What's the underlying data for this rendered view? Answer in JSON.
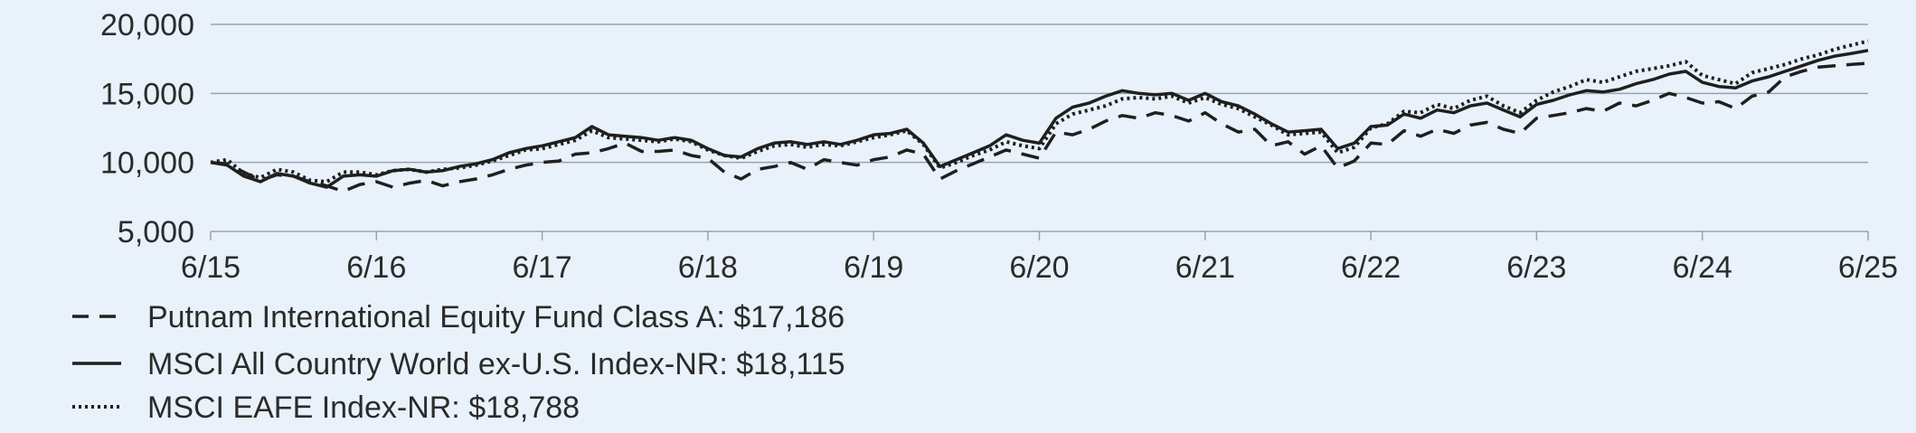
{
  "chart_data": {
    "type": "line",
    "x_ticks": [
      "6/15",
      "6/16",
      "6/17",
      "6/18",
      "6/19",
      "6/20",
      "6/21",
      "6/22",
      "6/23",
      "6/24",
      "6/25"
    ],
    "y_ticks": [
      "5,000",
      "10,000",
      "15,000",
      "20,000"
    ],
    "ylim": [
      5000,
      20000
    ],
    "xlim": [
      2015.5,
      2025.5
    ],
    "grid": "horizontal",
    "legend_placement": "bottom-left",
    "colors": {
      "background": "#e9f2fa",
      "grid": "#9aa3ad",
      "series": "#1f1f1f",
      "text": "#2b2b2b"
    },
    "series": [
      {
        "name": "Putnam International Equity Fund Class A: $17,186",
        "style": "dashed",
        "x": [
          2015.5,
          2015.6,
          2015.7,
          2015.8,
          2015.9,
          2016.0,
          2016.1,
          2016.2,
          2016.3,
          2016.4,
          2016.5,
          2016.6,
          2016.7,
          2016.8,
          2016.9,
          2017.0,
          2017.1,
          2017.2,
          2017.3,
          2017.4,
          2017.5,
          2017.6,
          2017.7,
          2017.8,
          2017.9,
          2018.0,
          2018.1,
          2018.2,
          2018.3,
          2018.4,
          2018.5,
          2018.6,
          2018.7,
          2018.8,
          2018.9,
          2019.0,
          2019.1,
          2019.2,
          2019.3,
          2019.4,
          2019.5,
          2019.6,
          2019.7,
          2019.8,
          2019.9,
          2020.0,
          2020.1,
          2020.2,
          2020.3,
          2020.4,
          2020.5,
          2020.6,
          2020.7,
          2020.8,
          2020.9,
          2021.0,
          2021.1,
          2021.2,
          2021.3,
          2021.4,
          2021.5,
          2021.6,
          2021.7,
          2021.8,
          2021.9,
          2022.0,
          2022.1,
          2022.2,
          2022.3,
          2022.4,
          2022.5,
          2022.6,
          2022.7,
          2022.8,
          2022.9,
          2023.0,
          2023.1,
          2023.2,
          2023.3,
          2023.4,
          2023.5,
          2023.6,
          2023.7,
          2023.8,
          2023.9,
          2024.0,
          2024.1,
          2024.2,
          2024.3,
          2024.4,
          2024.5,
          2024.6,
          2024.7,
          2024.8,
          2024.9,
          2025.0,
          2025.1,
          2025.2,
          2025.3,
          2025.4,
          2025.5
        ],
        "values": [
          10000,
          9900,
          9300,
          8700,
          9100,
          9000,
          8600,
          8300,
          7900,
          8400,
          8600,
          8200,
          8500,
          8700,
          8300,
          8600,
          8800,
          9100,
          9500,
          9800,
          10000,
          10100,
          10600,
          10700,
          11000,
          11400,
          10800,
          10800,
          10900,
          10500,
          10300,
          9300,
          8800,
          9500,
          9700,
          10000,
          9500,
          10200,
          10000,
          9800,
          10200,
          10400,
          10900,
          10600,
          8800,
          9400,
          9900,
          10400,
          10900,
          10600,
          10300,
          12200,
          12000,
          12400,
          13000,
          13400,
          13200,
          13600,
          13400,
          13000,
          13600,
          12800,
          12200,
          12400,
          11200,
          11500,
          10600,
          11200,
          9600,
          10100,
          11400,
          11300,
          12300,
          11900,
          12400,
          12100,
          12700,
          12900,
          12400,
          12100,
          13200,
          13400,
          13600,
          13900,
          13700,
          14300,
          14100,
          14500,
          15000,
          14700,
          14300,
          14400,
          13900,
          14800,
          15100,
          16200,
          16600,
          16900,
          17000,
          17100,
          17186
        ]
      },
      {
        "name": "MSCI All Country World ex-U.S. Index-NR: $18,115",
        "style": "solid",
        "x": [
          2015.5,
          2015.6,
          2015.7,
          2015.8,
          2015.9,
          2016.0,
          2016.1,
          2016.2,
          2016.3,
          2016.4,
          2016.5,
          2016.6,
          2016.7,
          2016.8,
          2016.9,
          2017.0,
          2017.1,
          2017.2,
          2017.3,
          2017.4,
          2017.5,
          2017.6,
          2017.7,
          2017.8,
          2017.9,
          2018.0,
          2018.1,
          2018.2,
          2018.3,
          2018.4,
          2018.5,
          2018.6,
          2018.7,
          2018.8,
          2018.9,
          2019.0,
          2019.1,
          2019.2,
          2019.3,
          2019.4,
          2019.5,
          2019.6,
          2019.7,
          2019.8,
          2019.9,
          2020.0,
          2020.1,
          2020.2,
          2020.3,
          2020.4,
          2020.5,
          2020.6,
          2020.7,
          2020.8,
          2020.9,
          2021.0,
          2021.1,
          2021.2,
          2021.3,
          2021.4,
          2021.5,
          2021.6,
          2021.7,
          2021.8,
          2021.9,
          2022.0,
          2022.1,
          2022.2,
          2022.3,
          2022.4,
          2022.5,
          2022.6,
          2022.7,
          2022.8,
          2022.9,
          2023.0,
          2023.1,
          2023.2,
          2023.3,
          2023.4,
          2023.5,
          2023.6,
          2023.7,
          2023.8,
          2023.9,
          2024.0,
          2024.1,
          2024.2,
          2024.3,
          2024.4,
          2024.5,
          2024.6,
          2024.7,
          2024.8,
          2024.9,
          2025.0,
          2025.1,
          2025.2,
          2025.3,
          2025.4,
          2025.5
        ],
        "values": [
          10000,
          9800,
          9000,
          8600,
          9200,
          9000,
          8500,
          8200,
          9000,
          9100,
          9000,
          9400,
          9500,
          9300,
          9400,
          9700,
          9900,
          10200,
          10700,
          11000,
          11200,
          11500,
          11800,
          12600,
          12000,
          11900,
          11800,
          11600,
          11800,
          11600,
          11000,
          10500,
          10400,
          11000,
          11400,
          11500,
          11300,
          11500,
          11300,
          11600,
          12000,
          12100,
          12400,
          11400,
          9700,
          10200,
          10700,
          11200,
          12000,
          11600,
          11400,
          13200,
          14000,
          14300,
          14800,
          15200,
          15000,
          14900,
          15000,
          14500,
          15000,
          14400,
          14100,
          13500,
          12800,
          12200,
          12300,
          12400,
          11000,
          11400,
          12600,
          12700,
          13500,
          13200,
          13800,
          13600,
          14100,
          14300,
          13800,
          13300,
          14200,
          14500,
          14900,
          15200,
          15100,
          15300,
          15700,
          16000,
          16400,
          16600,
          15800,
          15500,
          15400,
          15900,
          16200,
          16600,
          17000,
          17400,
          17700,
          17900,
          18115
        ]
      },
      {
        "name": "MSCI EAFE Index-NR: $18,788",
        "style": "dotted",
        "x": [
          2015.5,
          2015.6,
          2015.7,
          2015.8,
          2015.9,
          2016.0,
          2016.1,
          2016.2,
          2016.3,
          2016.4,
          2016.5,
          2016.6,
          2016.7,
          2016.8,
          2016.9,
          2017.0,
          2017.1,
          2017.2,
          2017.3,
          2017.4,
          2017.5,
          2017.6,
          2017.7,
          2017.8,
          2017.9,
          2018.0,
          2018.1,
          2018.2,
          2018.3,
          2018.4,
          2018.5,
          2018.6,
          2018.7,
          2018.8,
          2018.9,
          2019.0,
          2019.1,
          2019.2,
          2019.3,
          2019.4,
          2019.5,
          2019.6,
          2019.7,
          2019.8,
          2019.9,
          2020.0,
          2020.1,
          2020.2,
          2020.3,
          2020.4,
          2020.5,
          2020.6,
          2020.7,
          2020.8,
          2020.9,
          2021.0,
          2021.1,
          2021.2,
          2021.3,
          2021.4,
          2021.5,
          2021.6,
          2021.7,
          2021.8,
          2021.9,
          2022.0,
          2022.1,
          2022.2,
          2022.3,
          2022.4,
          2022.5,
          2022.6,
          2022.7,
          2022.8,
          2022.9,
          2023.0,
          2023.1,
          2023.2,
          2023.3,
          2023.4,
          2023.5,
          2023.6,
          2023.7,
          2023.8,
          2023.9,
          2024.0,
          2024.1,
          2024.2,
          2024.3,
          2024.4,
          2024.5,
          2024.6,
          2024.7,
          2024.8,
          2024.9,
          2025.0,
          2025.1,
          2025.2,
          2025.3,
          2025.4,
          2025.5
        ],
        "values": [
          10000,
          10200,
          9200,
          8900,
          9500,
          9300,
          8700,
          8600,
          9300,
          9300,
          9100,
          9400,
          9500,
          9300,
          9500,
          9600,
          9800,
          10100,
          10500,
          10900,
          11000,
          11300,
          11600,
          12300,
          11800,
          11700,
          11600,
          11500,
          11700,
          11500,
          10900,
          10500,
          10300,
          10800,
          11200,
          11300,
          11100,
          11300,
          11200,
          11500,
          11800,
          12000,
          12300,
          11300,
          9600,
          10000,
          10500,
          10900,
          11500,
          11200,
          11000,
          12800,
          13500,
          13800,
          14100,
          14600,
          14700,
          14600,
          14800,
          14300,
          14700,
          14200,
          13900,
          13300,
          12700,
          12000,
          12100,
          12200,
          10700,
          11100,
          12500,
          12800,
          13700,
          13600,
          14200,
          13900,
          14500,
          14800,
          14100,
          13600,
          14500,
          15100,
          15500,
          16000,
          15800,
          16200,
          16600,
          16800,
          17000,
          17300,
          16300,
          16000,
          15700,
          16500,
          16800,
          17100,
          17500,
          17800,
          18200,
          18500,
          18788
        ]
      }
    ]
  }
}
